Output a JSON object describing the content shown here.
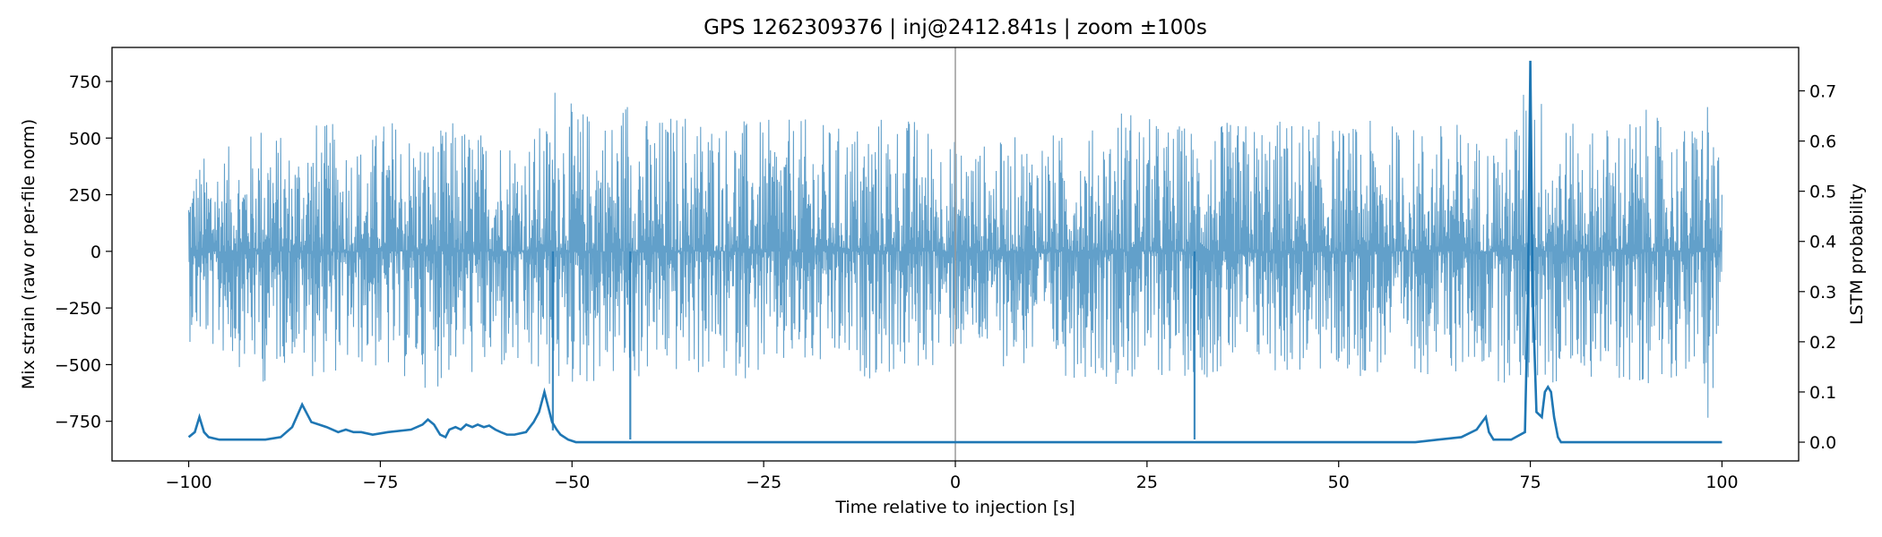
{
  "chart_data": {
    "type": "line",
    "title": "GPS 1262309376 | inj@2412.841s | zoom ±100s",
    "xlabel": "Time relative to injection [s]",
    "ylabel": "Mix strain (raw or per-file norm)",
    "y2label": "LSTM probability",
    "xlim": [
      -110,
      110
    ],
    "ylim": [
      -925,
      900
    ],
    "y2lim": [
      -0.0374,
      0.7865
    ],
    "x_ticks": [
      -100,
      -75,
      -50,
      -25,
      0,
      25,
      50,
      75,
      100
    ],
    "x_tick_labels": [
      "−100",
      "−75",
      "−50",
      "−25",
      "0",
      "25",
      "50",
      "75",
      "100"
    ],
    "y_ticks": [
      -750,
      -500,
      -250,
      0,
      250,
      500,
      750
    ],
    "y_tick_labels": [
      "−750",
      "−500",
      "−250",
      "0",
      "250",
      "500",
      "750"
    ],
    "y2_ticks": [
      0.0,
      0.1,
      0.2,
      0.3,
      0.4,
      0.5,
      0.6,
      0.7
    ],
    "y2_tick_labels": [
      "0.0",
      "0.1",
      "0.2",
      "0.3",
      "0.4",
      "0.5",
      "0.6",
      "0.7"
    ],
    "grid": false,
    "injection_marker_x": 0,
    "colors": {
      "strain": "#1f77b4",
      "strain_opacity": 0.7,
      "probability": "#1f77b4",
      "marker": "#999999"
    },
    "strain_envelope": {
      "x": [
        -100,
        -97,
        -93,
        -90,
        -87,
        -84,
        -80,
        -77,
        -74,
        -71,
        -68,
        -65,
        -62,
        -59,
        -56,
        -53,
        -52.5,
        -50,
        -47,
        -44,
        -42.5,
        -40,
        -35,
        -30,
        -25,
        -20,
        -15,
        -10,
        -5,
        0,
        5,
        10,
        15,
        19,
        22,
        25,
        28,
        31,
        35,
        40,
        45,
        50,
        55,
        60,
        65,
        69,
        72,
        75,
        78,
        81,
        84,
        87,
        90,
        93,
        96,
        98.5,
        100
      ],
      "upper": [
        390,
        450,
        480,
        630,
        470,
        590,
        560,
        480,
        620,
        560,
        520,
        600,
        540,
        560,
        500,
        610,
        820,
        650,
        640,
        610,
        800,
        590,
        650,
        600,
        580,
        590,
        560,
        620,
        600,
        500,
        480,
        540,
        520,
        560,
        680,
        600,
        570,
        580,
        570,
        590,
        600,
        560,
        580,
        560,
        590,
        500,
        520,
        820,
        600,
        560,
        560,
        600,
        630,
        560,
        560,
        790,
        260
      ],
      "lower": [
        -400,
        -450,
        -520,
        -600,
        -480,
        -560,
        -540,
        -520,
        -560,
        -580,
        -620,
        -540,
        -580,
        -560,
        -600,
        -630,
        -650,
        -620,
        -600,
        -580,
        -620,
        -560,
        -560,
        -570,
        -560,
        -560,
        -550,
        -570,
        -560,
        -450,
        -500,
        -540,
        -560,
        -560,
        -600,
        -580,
        -560,
        -560,
        -560,
        -540,
        -560,
        -560,
        -560,
        -540,
        -560,
        -540,
        -600,
        -600,
        -620,
        -560,
        -560,
        -600,
        -590,
        -560,
        -560,
        -770,
        -330
      ],
      "spikes": [
        {
          "x": -52.5,
          "y": -790
        },
        {
          "x": -42.4,
          "y": -830
        },
        {
          "x": 31.2,
          "y": -830
        }
      ]
    },
    "series": [
      {
        "x": [
          -100,
          -99.2,
          -98.6,
          -98.0,
          -97.4,
          -96.0,
          -93.0,
          -90.0,
          -88.0,
          -86.5,
          -85.2,
          -84.0,
          -83.0,
          -82.0,
          -80.5,
          -79.5,
          -78.5,
          -77.5,
          -76.0,
          -74.0,
          -71.0,
          -69.5,
          -68.8,
          -68.0,
          -67.2,
          -66.5,
          -66.0,
          -65.2,
          -64.5,
          -63.8,
          -63.0,
          -62.3,
          -61.5,
          -60.8,
          -60.0,
          -59.3,
          -58.5,
          -57.5,
          -56.0,
          -55.0,
          -54.3,
          -53.6,
          -53.1,
          -52.6,
          -52.0,
          -51.5,
          -50.5,
          -49.5,
          -48.0,
          -45.0,
          -40.0,
          -30.0,
          -20.0,
          -10.0,
          0.0,
          10.0,
          20.0,
          30.0,
          40.0,
          50.0,
          60.0,
          63.0,
          66.0,
          68.0,
          68.7,
          69.2,
          69.6,
          70.2,
          72.5,
          74.3,
          74.7,
          75.0,
          75.3,
          75.8,
          76.5,
          76.9,
          77.3,
          77.7,
          78.1,
          78.6,
          79.0,
          80.0,
          85.0,
          90.0,
          95.0,
          100.0
        ],
        "y": [
          0.01,
          0.02,
          0.05,
          0.02,
          0.01,
          0.005,
          0.005,
          0.005,
          0.01,
          0.03,
          0.075,
          0.04,
          0.035,
          0.03,
          0.02,
          0.025,
          0.02,
          0.02,
          0.015,
          0.02,
          0.025,
          0.035,
          0.045,
          0.035,
          0.015,
          0.01,
          0.025,
          0.03,
          0.025,
          0.035,
          0.03,
          0.035,
          0.03,
          0.033,
          0.025,
          0.02,
          0.015,
          0.015,
          0.02,
          0.04,
          0.06,
          0.1,
          0.07,
          0.04,
          0.025,
          0.015,
          0.005,
          0.0,
          0.0,
          0.0,
          0.0,
          0.0,
          0.0,
          0.0,
          0.0,
          0.0,
          0.0,
          0.0,
          0.0,
          0.0,
          0.0,
          0.005,
          0.01,
          0.025,
          0.04,
          0.05,
          0.02,
          0.005,
          0.005,
          0.02,
          0.3,
          0.76,
          0.3,
          0.06,
          0.05,
          0.1,
          0.11,
          0.1,
          0.05,
          0.01,
          0.0,
          0.0,
          0.0,
          0.0,
          0.0,
          0.0
        ]
      }
    ]
  }
}
